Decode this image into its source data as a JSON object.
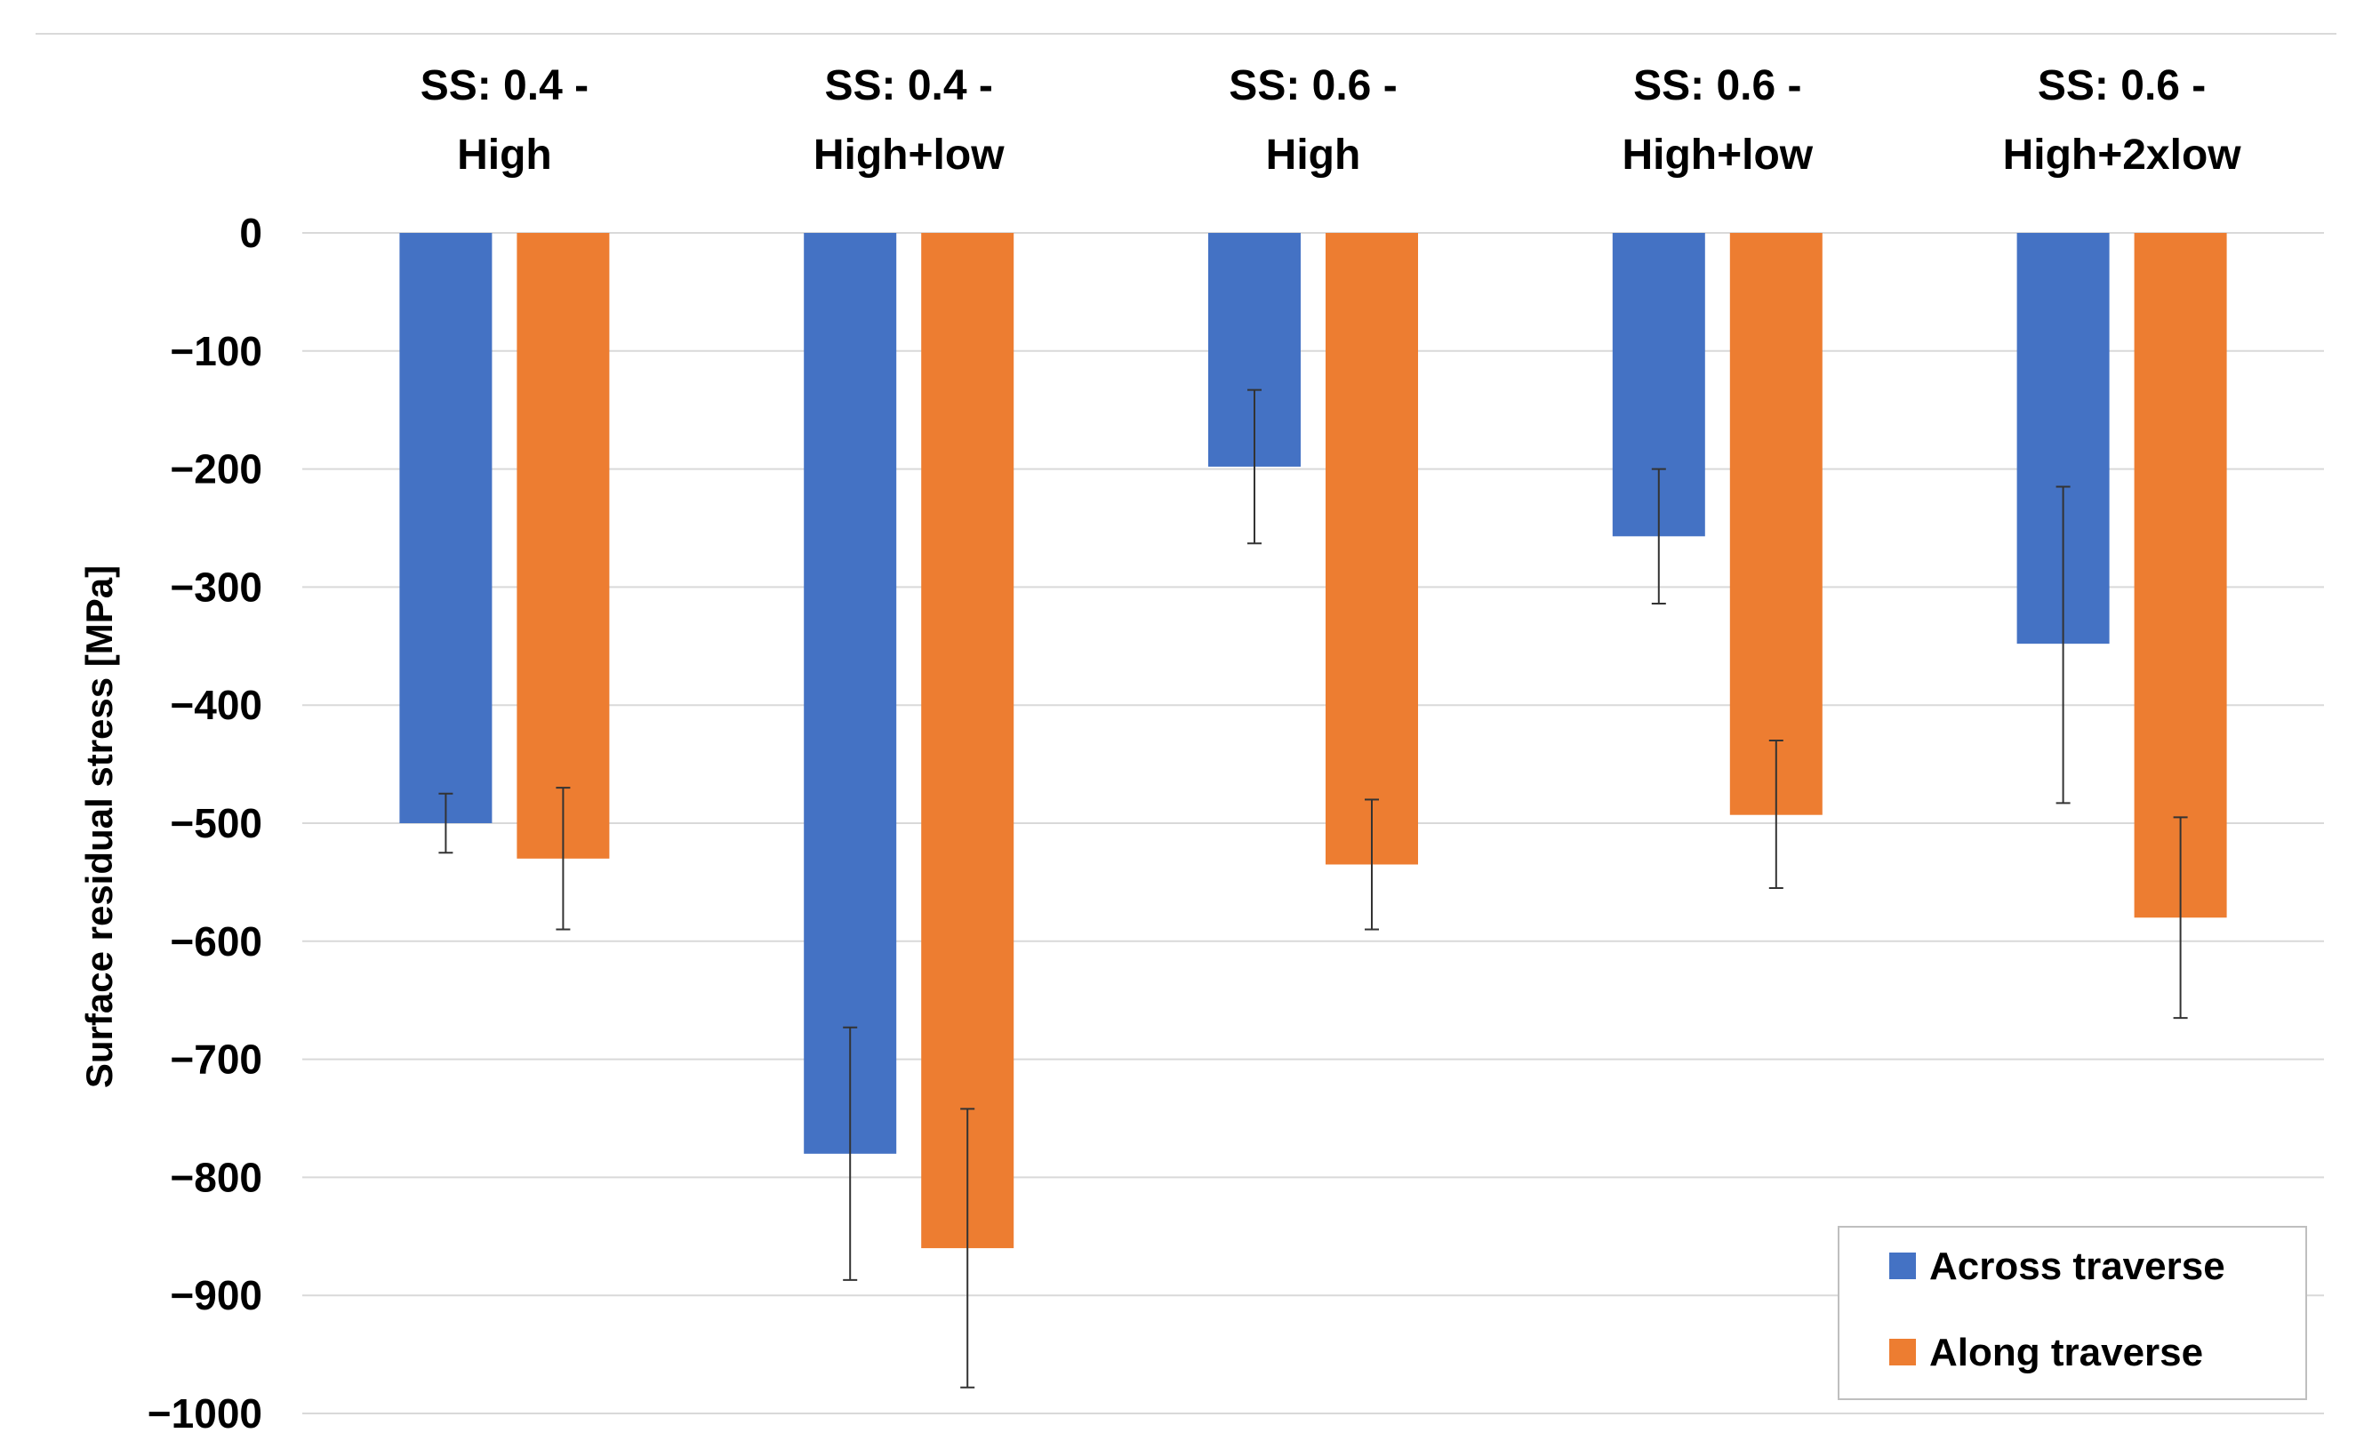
{
  "chart_data": {
    "type": "bar",
    "title": "",
    "xlabel": "",
    "ylabel": "Surface residual stress [MPa]",
    "ylim": [
      -1000,
      0
    ],
    "yticks": [
      0,
      -100,
      -200,
      -300,
      -400,
      -500,
      -600,
      -700,
      -800,
      -900,
      -1000
    ],
    "ytick_labels": [
      "0",
      "−100",
      "−200",
      "−300",
      "−400",
      "−500",
      "−600",
      "−700",
      "−800",
      "−900",
      "−1000"
    ],
    "grid": true,
    "categories": [
      [
        "SS: 0.4 -",
        "High"
      ],
      [
        "SS: 0.4 -",
        "High+low"
      ],
      [
        "SS: 0.6 -",
        "High"
      ],
      [
        "SS: 0.6 -",
        "High+low"
      ],
      [
        "SS: 0.6 -",
        "High+2xlow"
      ]
    ],
    "series": [
      {
        "name": "Across traverse",
        "color": "#4472c4",
        "values": [
          -500,
          -780,
          -198,
          -257,
          -348
        ],
        "error_low": [
          -525,
          -887,
          -263,
          -314,
          -483
        ],
        "error_high": [
          -475,
          -673,
          -133,
          -200,
          -215
        ]
      },
      {
        "name": "Along traverse",
        "color": "#ed7d31",
        "values": [
          -530,
          -860,
          -535,
          -493,
          -580
        ],
        "error_low": [
          -590,
          -978,
          -590,
          -555,
          -665
        ],
        "error_high": [
          -470,
          -742,
          -480,
          -430,
          -495
        ]
      }
    ],
    "legend_position": "bottom-right"
  }
}
